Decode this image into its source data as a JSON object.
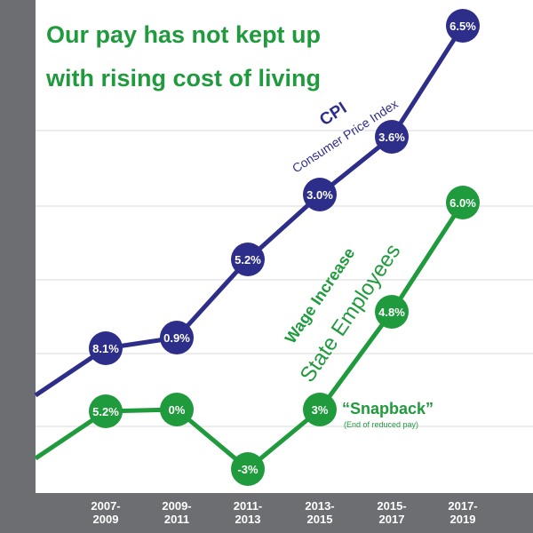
{
  "chart_data": {
    "type": "line",
    "title_lines": [
      "Our pay has not kept up",
      "with rising cost of living"
    ],
    "categories": [
      [
        "2007-",
        "2009"
      ],
      [
        "2009-",
        "2011"
      ],
      [
        "2011-",
        "2013"
      ],
      [
        "2013-",
        "2015"
      ],
      [
        "2015-",
        "2017"
      ],
      [
        "2017-",
        "2019"
      ]
    ],
    "series": [
      {
        "key": "cpi",
        "name": "CPI",
        "subtitle": "Consumer Price Index",
        "color": "#2d2d8a",
        "lead_in": [
          0,
          445
        ],
        "labels": [
          "8.1%",
          "0.9%",
          "5.2%",
          "3.0%",
          "3.6%",
          "6.5%"
        ],
        "levels": [
          392,
          380,
          292,
          219,
          154,
          29
        ]
      },
      {
        "key": "wage",
        "name": "Wage Increase",
        "subtitle": "State Employees",
        "color": "#1f9a3c",
        "lead_in": [
          0,
          516
        ],
        "labels": [
          "5.2%",
          "0%",
          "-3%",
          "3%",
          "4.8%",
          "6.0%"
        ],
        "levels": [
          463,
          461,
          528,
          461,
          351,
          228
        ]
      }
    ],
    "annotation": {
      "title": "“Snapback”",
      "subtitle": "(End of reduced pay)"
    },
    "colors": {
      "axis_bar": "#6d6e71",
      "grid": "#d9d9d9",
      "title": "#1f9a3c"
    }
  }
}
